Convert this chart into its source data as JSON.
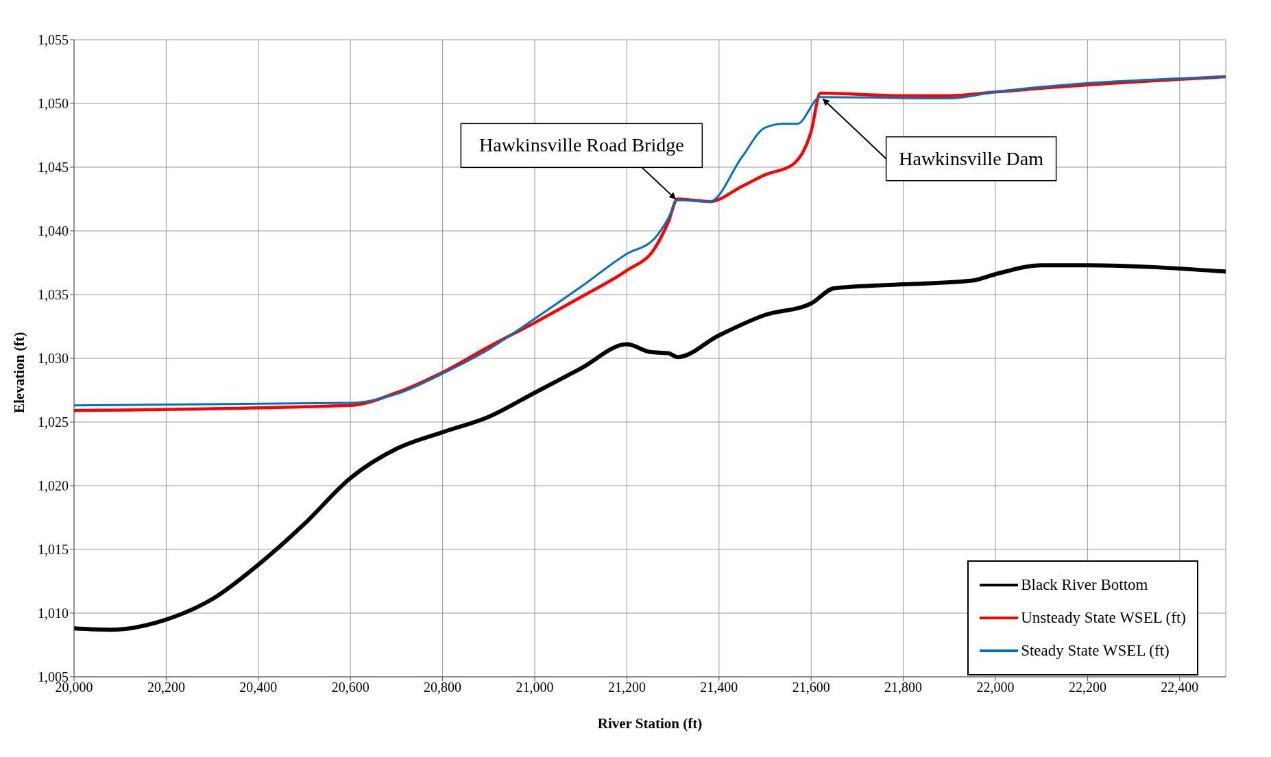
{
  "chart_data": {
    "type": "line",
    "xlabel": "River Station (ft)",
    "ylabel": "Elevation (ft)",
    "xlim": [
      20000,
      22500
    ],
    "xticks": [
      {
        "value": 20000,
        "label": "20,000"
      },
      {
        "value": 20200,
        "label": "20,200"
      },
      {
        "value": 20400,
        "label": "20,400"
      },
      {
        "value": 20600,
        "label": "20,600"
      },
      {
        "value": 20800,
        "label": "20,800"
      },
      {
        "value": 21000,
        "label": "21,000"
      },
      {
        "value": 21200,
        "label": "21,200"
      },
      {
        "value": 21400,
        "label": "21,400"
      },
      {
        "value": 21600,
        "label": "21,600"
      },
      {
        "value": 21800,
        "label": "21,800"
      },
      {
        "value": 22000,
        "label": "22,000"
      },
      {
        "value": 22200,
        "label": "22,200"
      },
      {
        "value": 22400,
        "label": "22,400"
      }
    ],
    "ylim": [
      1005,
      1055
    ],
    "yticks": [
      {
        "value": 1005,
        "label": "1,005"
      },
      {
        "value": 1010,
        "label": "1,010"
      },
      {
        "value": 1015,
        "label": "1,015"
      },
      {
        "value": 1020,
        "label": "1,020"
      },
      {
        "value": 1025,
        "label": "1,025"
      },
      {
        "value": 1030,
        "label": "1,030"
      },
      {
        "value": 1035,
        "label": "1,035"
      },
      {
        "value": 1040,
        "label": "1,040"
      },
      {
        "value": 1045,
        "label": "1,045"
      },
      {
        "value": 1050,
        "label": "1,050"
      },
      {
        "value": 1055,
        "label": "1,055"
      }
    ],
    "grid": true,
    "legend": "bottom right",
    "marker": "none",
    "line_style": "solid",
    "annotations": [
      {
        "text": "Hawkinsville Road Bridge",
        "x": 21310,
        "y": 1042.4
      },
      {
        "text": "Hawkinsville Dam",
        "x": 21620,
        "y": 1050.5
      }
    ],
    "series": [
      {
        "name": "Black River Bottom",
        "color": "#000000",
        "x": [
          20000,
          20080,
          20200,
          20300,
          20400,
          20500,
          20600,
          20700,
          20800,
          20900,
          21000,
          21100,
          21200,
          21250,
          21290,
          21310,
          21400,
          21500,
          21600,
          21650,
          21800,
          21950,
          22000,
          22100,
          22200,
          22500
        ],
        "values": [
          1008.8,
          1008.7,
          1009.5,
          1011.1,
          1013.8,
          1017.0,
          1020.6,
          1022.9,
          1024.2,
          1025.4,
          1027.3,
          1029.2,
          1031.1,
          1030.5,
          1030.4,
          1030.1,
          1031.8,
          1033.4,
          1034.3,
          1035.5,
          1035.8,
          1036.1,
          1036.6,
          1037.3,
          1037.3,
          1036.8
        ]
      },
      {
        "name": "Unsteady State WSEL (ft)",
        "color": "#ff0000",
        "x": [
          20000,
          20600,
          20700,
          20800,
          20900,
          21000,
          21100,
          21200,
          21260,
          21290,
          21310,
          21380,
          21450,
          21500,
          21560,
          21600,
          21620,
          21800,
          21900,
          22000,
          22100,
          22500
        ],
        "values": [
          1025.9,
          1026.3,
          1027.3,
          1028.9,
          1030.9,
          1032.8,
          1034.8,
          1036.9,
          1038.6,
          1040.7,
          1042.5,
          1042.3,
          1043.5,
          1044.4,
          1045.2,
          1047.8,
          1050.8,
          1050.6,
          1050.6,
          1050.9,
          1051.2,
          1052.1
        ]
      },
      {
        "name": "Steady State WSEL (ft)",
        "color": "#0070c0",
        "x": [
          20000,
          20600,
          20700,
          20800,
          20900,
          21000,
          21100,
          21200,
          21260,
          21290,
          21310,
          21380,
          21450,
          21500,
          21540,
          21570,
          21620,
          21900,
          22000,
          22500
        ],
        "values": [
          1026.3,
          1026.5,
          1027.2,
          1028.8,
          1030.7,
          1033.1,
          1035.6,
          1038.2,
          1039.4,
          1041.0,
          1042.4,
          1042.3,
          1045.8,
          1048.1,
          1048.4,
          1048.4,
          1050.5,
          1050.4,
          1050.9,
          1052.1
        ]
      }
    ]
  }
}
